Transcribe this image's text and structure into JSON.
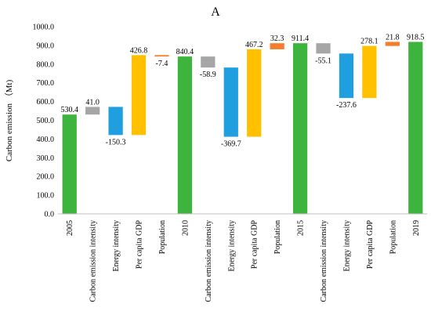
{
  "chart_data": {
    "type": "bar",
    "panel_label": "A",
    "ylabel": "Carbon emission （Mt)",
    "ylim": [
      0,
      1000
    ],
    "y_ticks": [
      "0.0",
      "100.0",
      "200.0",
      "300.0",
      "400.0",
      "500.0",
      "600.0",
      "700.0",
      "800.0",
      "900.0",
      "1000.0"
    ],
    "grid": false,
    "colors": {
      "total": "#3db43d",
      "carbon_emission_intensity": "#a6a6a6",
      "energy_intensity": "#1f9ee0",
      "per_capita_gdp": "#ffc000",
      "population": "#f47c2a"
    },
    "categories": [
      "2005",
      "Carbon emission intensity",
      "Energy intensity",
      "Per capita GDP",
      "Population",
      "2010",
      "Carbon emission intensity",
      "Energy intensity",
      "Per capita GDP",
      "Population",
      "2015",
      "Carbon emission intensity",
      "Energy intensity",
      "Per capita GDP",
      "Population",
      "2019"
    ],
    "bars": [
      {
        "kind": "total",
        "label": "530.4",
        "start": 0,
        "end": 530.4
      },
      {
        "kind": "carbon_emission_intensity",
        "label": "41.0",
        "start": 530.4,
        "end": 571.4
      },
      {
        "kind": "energy_intensity",
        "label": "-150.3",
        "start": 571.4,
        "end": 421.1
      },
      {
        "kind": "per_capita_gdp",
        "label": "426.8",
        "start": 421.1,
        "end": 847.9
      },
      {
        "kind": "population",
        "label": "-7.4",
        "start": 847.9,
        "end": 840.5
      },
      {
        "kind": "total",
        "label": "840.4",
        "start": 0,
        "end": 840.4
      },
      {
        "kind": "carbon_emission_intensity",
        "label": "-58.9",
        "start": 840.4,
        "end": 781.5
      },
      {
        "kind": "energy_intensity",
        "label": "-369.7",
        "start": 781.5,
        "end": 411.8
      },
      {
        "kind": "per_capita_gdp",
        "label": "467.2",
        "start": 411.8,
        "end": 879.0
      },
      {
        "kind": "population",
        "label": "32.3",
        "start": 879.0,
        "end": 911.3
      },
      {
        "kind": "total",
        "label": "911.4",
        "start": 0,
        "end": 911.4
      },
      {
        "kind": "carbon_emission_intensity",
        "label": "-55.1",
        "start": 911.4,
        "end": 856.3
      },
      {
        "kind": "energy_intensity",
        "label": "-237.6",
        "start": 856.3,
        "end": 618.7
      },
      {
        "kind": "per_capita_gdp",
        "label": "278.1",
        "start": 618.7,
        "end": 896.8
      },
      {
        "kind": "population",
        "label": "21.8",
        "start": 896.8,
        "end": 918.6
      },
      {
        "kind": "total",
        "label": "918.5",
        "start": 0,
        "end": 918.5
      }
    ]
  }
}
